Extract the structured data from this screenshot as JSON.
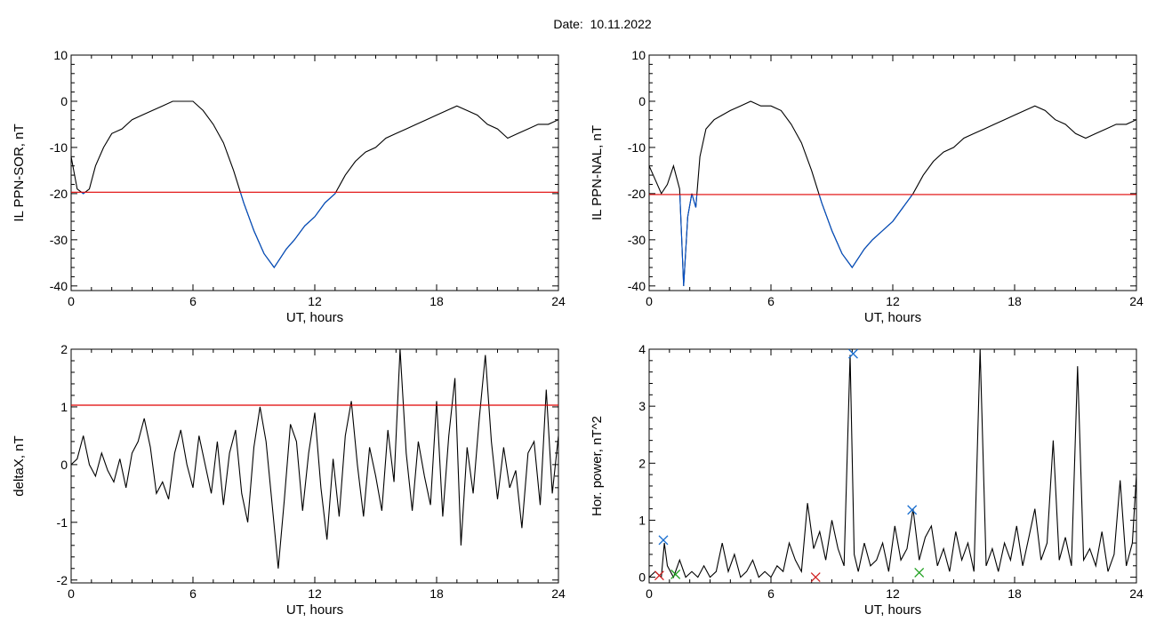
{
  "header": {
    "date_label": "Date:",
    "date_value": "10.11.2022"
  },
  "chart_data": [
    {
      "type": "line",
      "ylabel": "IL PPN-SOR, nT",
      "xlabel": "UT, hours",
      "xlim": [
        0,
        24
      ],
      "ylim": [
        -41,
        10
      ],
      "xticks": [
        0,
        6,
        12,
        18,
        24
      ],
      "yticks": [
        -40,
        -30,
        -20,
        -10,
        0,
        10
      ],
      "grid": false,
      "threshold": {
        "value": -19.7,
        "color": "#e00000"
      },
      "below_threshold_color": "#0050c8",
      "line_color": "#000000",
      "x": [
        0,
        0.3,
        0.6,
        0.9,
        1.2,
        1.6,
        2.0,
        2.5,
        3.0,
        3.5,
        4.0,
        4.5,
        5.0,
        5.5,
        6.0,
        6.5,
        7.0,
        7.5,
        8.0,
        8.5,
        9.0,
        9.5,
        10.0,
        10.3,
        10.6,
        11.0,
        11.5,
        12.0,
        12.5,
        13.0,
        13.5,
        14.0,
        14.5,
        15.0,
        15.5,
        16.0,
        16.5,
        17.0,
        17.5,
        18.0,
        18.5,
        19.0,
        19.5,
        20.0,
        20.5,
        21.0,
        21.5,
        22.0,
        22.5,
        23.0,
        23.5,
        24.0
      ],
      "y": [
        -12,
        -19,
        -20,
        -19,
        -14,
        -10,
        -7,
        -6,
        -4,
        -3,
        -2,
        -1,
        0,
        0,
        0,
        -2,
        -5,
        -9,
        -15,
        -22,
        -28,
        -33,
        -36,
        -34,
        -32,
        -30,
        -27,
        -25,
        -22,
        -20,
        -16,
        -13,
        -11,
        -10,
        -8,
        -7,
        -6,
        -5,
        -4,
        -3,
        -2,
        -1,
        -2,
        -3,
        -5,
        -6,
        -8,
        -7,
        -6,
        -5,
        -5,
        -4
      ]
    },
    {
      "type": "line",
      "ylabel": "IL PPN-NAL, nT",
      "xlabel": "UT, hours",
      "xlim": [
        0,
        24
      ],
      "ylim": [
        -41,
        10
      ],
      "xticks": [
        0,
        6,
        12,
        18,
        24
      ],
      "yticks": [
        -40,
        -30,
        -20,
        -10,
        0,
        10
      ],
      "grid": false,
      "threshold": {
        "value": -20.2,
        "color": "#e00000"
      },
      "below_threshold_color": "#0050c8",
      "line_color": "#000000",
      "x": [
        0,
        0.3,
        0.6,
        0.9,
        1.2,
        1.5,
        1.7,
        1.9,
        2.1,
        2.3,
        2.5,
        2.8,
        3.2,
        3.6,
        4.0,
        4.5,
        5.0,
        5.5,
        6.0,
        6.5,
        7.0,
        7.5,
        8.0,
        8.5,
        9.0,
        9.5,
        10.0,
        10.3,
        10.6,
        11.0,
        11.5,
        12.0,
        12.5,
        13.0,
        13.5,
        14.0,
        14.5,
        15.0,
        15.5,
        16.0,
        16.5,
        17.0,
        17.5,
        18.0,
        18.5,
        19.0,
        19.5,
        20.0,
        20.5,
        21.0,
        21.5,
        22.0,
        22.5,
        23.0,
        23.5,
        24.0
      ],
      "y": [
        -14,
        -17,
        -20,
        -18,
        -14,
        -19,
        -40,
        -25,
        -20,
        -23,
        -12,
        -6,
        -4,
        -3,
        -2,
        -1,
        0,
        -1,
        -1,
        -2,
        -5,
        -9,
        -15,
        -22,
        -28,
        -33,
        -36,
        -34,
        -32,
        -30,
        -28,
        -26,
        -23,
        -20,
        -16,
        -13,
        -11,
        -10,
        -8,
        -7,
        -6,
        -5,
        -4,
        -3,
        -2,
        -1,
        -2,
        -4,
        -5,
        -7,
        -8,
        -7,
        -6,
        -5,
        -5,
        -4
      ]
    },
    {
      "type": "line",
      "ylabel": "deltaX, nT",
      "xlabel": "UT, hours",
      "xlim": [
        0,
        24
      ],
      "ylim": [
        -2.05,
        2
      ],
      "xticks": [
        0,
        6,
        12,
        18,
        24
      ],
      "yticks": [
        -2,
        -1,
        0,
        1,
        2
      ],
      "grid": false,
      "threshold": {
        "value": 1.03,
        "color": "#e00000"
      },
      "line_color": "#000000",
      "x": [
        0,
        0.3,
        0.6,
        0.9,
        1.2,
        1.5,
        1.8,
        2.1,
        2.4,
        2.7,
        3.0,
        3.3,
        3.6,
        3.9,
        4.2,
        4.5,
        4.8,
        5.1,
        5.4,
        5.7,
        6.0,
        6.3,
        6.6,
        6.9,
        7.2,
        7.5,
        7.8,
        8.1,
        8.4,
        8.7,
        9.0,
        9.3,
        9.6,
        9.9,
        10.2,
        10.5,
        10.8,
        11.1,
        11.4,
        11.7,
        12.0,
        12.3,
        12.6,
        12.9,
        13.2,
        13.5,
        13.8,
        14.1,
        14.4,
        14.7,
        15.0,
        15.3,
        15.6,
        15.9,
        16.2,
        16.5,
        16.8,
        17.1,
        17.4,
        17.7,
        18.0,
        18.3,
        18.6,
        18.9,
        19.2,
        19.5,
        19.8,
        20.1,
        20.4,
        20.7,
        21.0,
        21.3,
        21.6,
        21.9,
        22.2,
        22.5,
        22.8,
        23.1,
        23.4,
        23.7,
        24.0
      ],
      "y": [
        0,
        0.1,
        0.5,
        0,
        -0.2,
        0.2,
        -0.1,
        -0.3,
        0.1,
        -0.4,
        0.2,
        0.4,
        0.8,
        0.3,
        -0.5,
        -0.3,
        -0.6,
        0.2,
        0.6,
        0,
        -0.4,
        0.5,
        0,
        -0.5,
        0.4,
        -0.7,
        0.2,
        0.6,
        -0.5,
        -1,
        0.3,
        1,
        0.4,
        -0.7,
        -1.8,
        -0.6,
        0.7,
        0.4,
        -0.8,
        0.2,
        0.9,
        -0.4,
        -1.3,
        0.1,
        -0.9,
        0.5,
        1.1,
        0,
        -0.9,
        0.3,
        -0.2,
        -0.8,
        0.6,
        -0.3,
        2,
        0.2,
        -0.8,
        0.4,
        -0.2,
        -0.7,
        1.1,
        -0.9,
        0.5,
        1.5,
        -1.4,
        0.3,
        -0.5,
        0.8,
        1.9,
        0.4,
        -0.6,
        0.3,
        -0.4,
        -0.1,
        -1.1,
        0.2,
        0.4,
        -0.7,
        1.3,
        -0.5,
        0.5
      ]
    },
    {
      "type": "line",
      "ylabel": "Hor. power, nT^2",
      "xlabel": "UT, hours",
      "xlim": [
        0,
        24
      ],
      "ylim": [
        -0.1,
        4
      ],
      "xticks": [
        0,
        6,
        12,
        18,
        24
      ],
      "yticks": [
        0,
        1,
        2,
        3,
        4
      ],
      "grid": false,
      "line_color": "#000000",
      "x": [
        0,
        0.3,
        0.6,
        0.75,
        0.9,
        1.2,
        1.5,
        1.8,
        2.1,
        2.4,
        2.7,
        3.0,
        3.3,
        3.6,
        3.9,
        4.2,
        4.5,
        4.8,
        5.1,
        5.4,
        5.7,
        6.0,
        6.3,
        6.6,
        6.9,
        7.2,
        7.5,
        7.8,
        8.1,
        8.4,
        8.7,
        9.0,
        9.3,
        9.6,
        9.9,
        10.1,
        10.3,
        10.6,
        10.9,
        11.2,
        11.5,
        11.8,
        12.1,
        12.4,
        12.7,
        13.0,
        13.3,
        13.6,
        13.9,
        14.2,
        14.5,
        14.8,
        15.1,
        15.4,
        15.7,
        16.0,
        16.3,
        16.6,
        16.9,
        17.2,
        17.5,
        17.8,
        18.1,
        18.4,
        18.7,
        19.0,
        19.3,
        19.6,
        19.9,
        20.2,
        20.5,
        20.8,
        21.1,
        21.4,
        21.7,
        22.0,
        22.3,
        22.6,
        22.9,
        23.2,
        23.5,
        23.8,
        24.0
      ],
      "y": [
        0,
        0.1,
        0,
        0.6,
        0.2,
        0,
        0.3,
        0,
        0.1,
        0,
        0.2,
        0,
        0.1,
        0.6,
        0.1,
        0.4,
        0,
        0.1,
        0.3,
        0,
        0.1,
        0,
        0.2,
        0.1,
        0.6,
        0.3,
        0.1,
        1.3,
        0.5,
        0.8,
        0.3,
        1,
        0.5,
        0.2,
        3.9,
        0.4,
        0.1,
        0.6,
        0.2,
        0.3,
        0.6,
        0.1,
        0.9,
        0.3,
        0.5,
        1.2,
        0.3,
        0.7,
        0.9,
        0.2,
        0.5,
        0.1,
        0.8,
        0.3,
        0.6,
        0.1,
        4,
        0.2,
        0.5,
        0.1,
        0.6,
        0.3,
        0.9,
        0.2,
        0.7,
        1.2,
        0.3,
        0.6,
        2.4,
        0.3,
        0.7,
        0.2,
        3.7,
        0.3,
        0.5,
        0.2,
        0.8,
        0.1,
        0.4,
        1.7,
        0.2,
        0.6,
        1.8
      ],
      "markers": [
        {
          "x": 0.7,
          "y": 0.65,
          "symbol": "x",
          "color": "#1a6fd0"
        },
        {
          "x": 10.05,
          "y": 3.92,
          "symbol": "x",
          "color": "#1a6fd0"
        },
        {
          "x": 12.95,
          "y": 1.18,
          "symbol": "x",
          "color": "#1a6fd0"
        },
        {
          "x": 0.5,
          "y": 0.03,
          "symbol": "x",
          "color": "#d02020"
        },
        {
          "x": 8.2,
          "y": 0.0,
          "symbol": "x",
          "color": "#d02020"
        },
        {
          "x": 1.3,
          "y": 0.05,
          "symbol": "x",
          "color": "#20a020"
        },
        {
          "x": 13.3,
          "y": 0.08,
          "symbol": "x",
          "color": "#20a020"
        }
      ]
    }
  ]
}
